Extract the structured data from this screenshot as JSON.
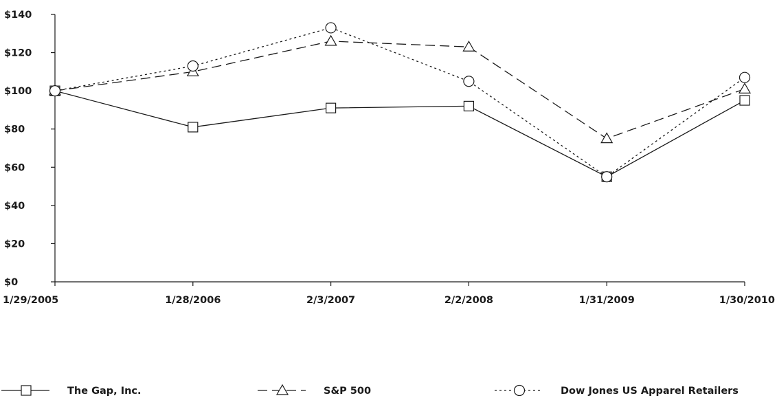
{
  "chart_data": {
    "type": "line",
    "title": "",
    "xlabel": "",
    "ylabel": "",
    "categories": [
      "1/29/2005",
      "1/28/2006",
      "2/3/2007",
      "2/2/2008",
      "1/31/2009",
      "1/30/2010"
    ],
    "ylim": [
      0,
      140
    ],
    "y_ticks": [
      0,
      20,
      40,
      60,
      80,
      100,
      120,
      140
    ],
    "y_tick_labels": [
      "$0",
      "$20",
      "$40",
      "$60",
      "$80",
      "$100",
      "$120",
      "$140"
    ],
    "grid": false,
    "legend_position": "bottom",
    "series": [
      {
        "name": "The Gap, Inc.",
        "marker": "square",
        "dash": "solid",
        "values": [
          100,
          81,
          91,
          92,
          55,
          95
        ]
      },
      {
        "name": "S&P 500",
        "marker": "triangle",
        "dash": "dashed",
        "values": [
          100,
          110,
          126,
          123,
          75,
          101
        ]
      },
      {
        "name": "Dow Jones US Apparel Retailers",
        "marker": "circle",
        "dash": "dotted",
        "values": [
          100,
          113,
          133,
          105,
          55,
          107
        ]
      }
    ],
    "colors": {
      "line": "#1a1a1a",
      "background": "#ffffff"
    }
  }
}
